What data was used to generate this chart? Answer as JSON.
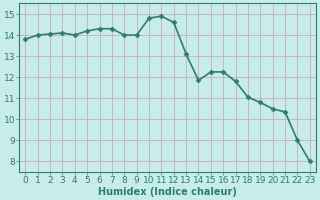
{
  "x": [
    0,
    1,
    2,
    3,
    4,
    5,
    6,
    7,
    8,
    9,
    10,
    11,
    12,
    13,
    14,
    15,
    16,
    17,
    18,
    19,
    20,
    21,
    22,
    23
  ],
  "y": [
    13.8,
    14.0,
    14.05,
    14.1,
    14.0,
    14.2,
    14.3,
    14.3,
    14.0,
    14.0,
    14.8,
    14.9,
    14.6,
    13.1,
    11.85,
    12.25,
    12.25,
    11.8,
    11.05,
    10.8,
    10.5,
    10.35,
    9.0,
    8.0
  ],
  "xlabel": "Humidex (Indice chaleur)",
  "xlim": [
    -0.5,
    23.5
  ],
  "ylim": [
    7.5,
    15.5
  ],
  "yticks": [
    8,
    9,
    10,
    11,
    12,
    13,
    14,
    15
  ],
  "xticks": [
    0,
    1,
    2,
    3,
    4,
    5,
    6,
    7,
    8,
    9,
    10,
    11,
    12,
    13,
    14,
    15,
    16,
    17,
    18,
    19,
    20,
    21,
    22,
    23
  ],
  "line_color": "#2e7d6e",
  "marker": "D",
  "marker_size": 2.5,
  "bg_color": "#c8ecec",
  "grid_color": "#c8b0b0",
  "tick_color": "#2e7d6e",
  "label_color": "#2e7d6e",
  "xlabel_fontsize": 7,
  "tick_fontsize": 6.5,
  "linewidth": 1.2
}
